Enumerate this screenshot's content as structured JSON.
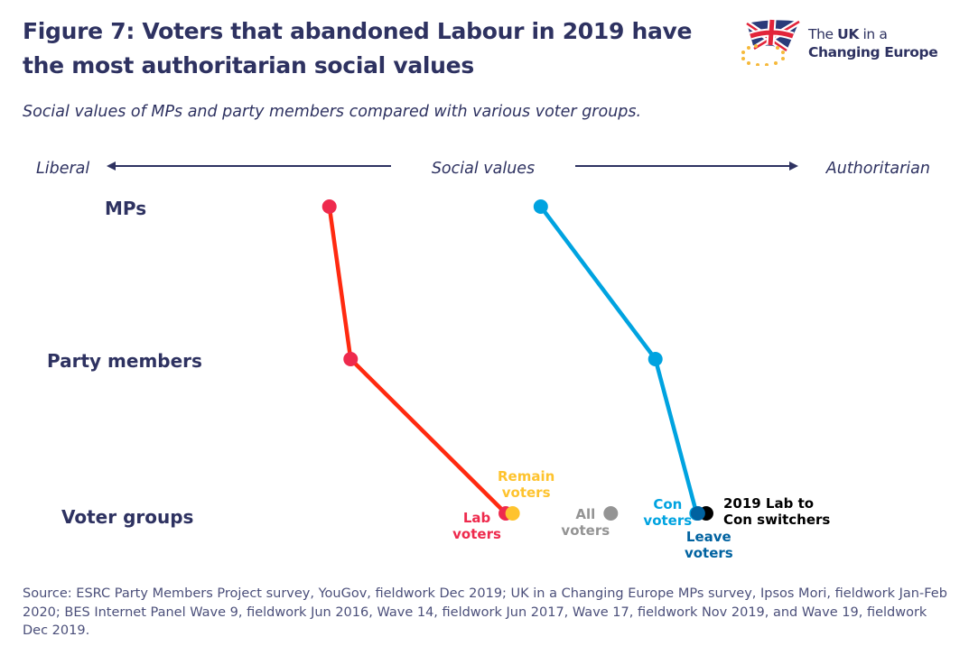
{
  "header": {
    "title_line1": "Figure 7: Voters that abandoned Labour in 2019 have",
    "title_line2": "the most authoritarian social values",
    "subtitle": "Social values of MPs and party members compared with various voter groups."
  },
  "logo": {
    "line1_prefix": "The ",
    "line1_bold": "UK",
    "line1_suffix": " in a",
    "line2": "Changing Europe",
    "icon": "union-jack-flag-with-eu-stars"
  },
  "colors": {
    "text": "#2e3261",
    "labour_line": "#ff2a10",
    "labour_point": "#ee2a4d",
    "conservative": "#00a3e0",
    "remain": "#fec32e",
    "all_voters": "#949494",
    "leave": "#0062a0",
    "switchers": "#000000"
  },
  "chart_data": {
    "type": "scatter",
    "title": "Figure 7: Voters that abandoned Labour in 2019 have the most authoritarian social values",
    "subtitle": "Social values of MPs and party members compared with various voter groups.",
    "x_axis": {
      "center_label": "Social values",
      "left_label": "Liberal",
      "right_label": "Authoritarian",
      "range": [
        0,
        100
      ],
      "note": "No numeric scale shown; values are estimated relative positions from Liberal (0) to Authoritarian (100)"
    },
    "rows": [
      "MPs",
      "Party members",
      "Voter groups"
    ],
    "series": [
      {
        "name": "Labour",
        "color": "#ee2a4d",
        "line_color": "#ff2a10",
        "points": [
          {
            "row": "MPs",
            "x": 32.2
          },
          {
            "row": "Party members",
            "x": 35.3
          },
          {
            "row": "Voter groups",
            "x": 57.9,
            "label": [
              "Lab",
              "voters"
            ]
          }
        ]
      },
      {
        "name": "Conservative",
        "color": "#00a3e0",
        "line_color": "#00a3e0",
        "points": [
          {
            "row": "MPs",
            "x": 63.0
          },
          {
            "row": "Party members",
            "x": 79.7
          },
          {
            "row": "Voter groups",
            "x": 85.7,
            "label": [
              "Con",
              "voters"
            ]
          }
        ]
      }
    ],
    "voter_groups": [
      {
        "name": "Remain voters",
        "label": [
          "Remain",
          "voters"
        ],
        "x": 58.9,
        "color": "#fec32e"
      },
      {
        "name": "All voters",
        "label": [
          "All",
          "voters"
        ],
        "x": 73.2,
        "color": "#949494"
      },
      {
        "name": "Leave voters",
        "label": [
          "Leave",
          "voters"
        ],
        "x": 85.9,
        "color": "#0062a0"
      },
      {
        "name": "2019 Lab to Con switchers",
        "label": [
          "2019 Lab to",
          "Con switchers"
        ],
        "x": 87.1,
        "color": "#000000"
      }
    ]
  },
  "source": "Source: ESRC Party Members Project survey, YouGov, fieldwork Dec 2019; UK in a Changing Europe MPs survey, Ipsos Mori, fieldwork Jan-Feb 2020; BES Internet Panel Wave 9, fieldwork Jun 2016, Wave 14, fieldwork Jun 2017, Wave 17, fieldwork Nov 2019, and Wave 19, fieldwork Dec 2019."
}
